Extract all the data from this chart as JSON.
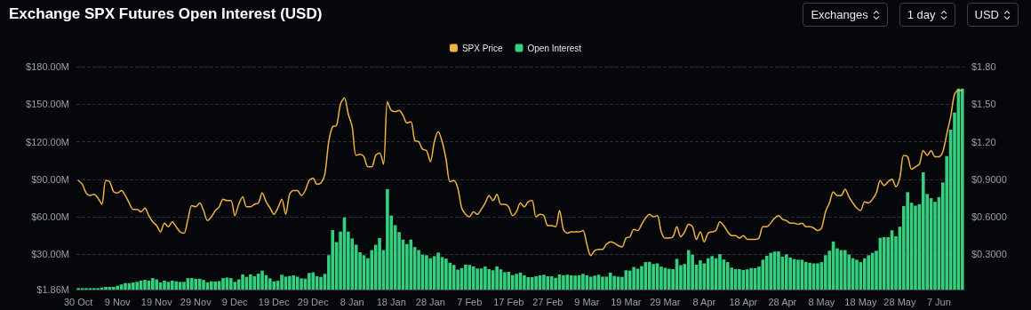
{
  "chart_data": {
    "type": "bar",
    "title": "Exchange SPX Futures Open Interest (USD)",
    "annotations": [
      "Exchanges",
      "1 day",
      "USD"
    ],
    "categories": [
      "30 Oct",
      null,
      null,
      null,
      null,
      null,
      null,
      null,
      null,
      null,
      "9 Nov",
      null,
      null,
      null,
      null,
      null,
      null,
      null,
      null,
      null,
      "19 Nov",
      null,
      null,
      null,
      null,
      null,
      null,
      null,
      null,
      null,
      "29 Nov",
      null,
      null,
      null,
      null,
      null,
      null,
      null,
      null,
      null,
      "9 Dec",
      null,
      null,
      null,
      null,
      null,
      null,
      null,
      null,
      null,
      "19 Dec",
      null,
      null,
      null,
      null,
      null,
      null,
      null,
      null,
      null,
      "29 Dec",
      null,
      null,
      null,
      null,
      null,
      null,
      null,
      null,
      null,
      "8 Jan",
      null,
      null,
      null,
      null,
      null,
      null,
      null,
      null,
      null,
      "18 Jan",
      null,
      null,
      null,
      null,
      null,
      null,
      null,
      null,
      null,
      "28 Jan",
      null,
      null,
      null,
      null,
      null,
      null,
      null,
      null,
      null,
      "7 Feb",
      null,
      null,
      null,
      null,
      null,
      null,
      null,
      null,
      null,
      "17 Feb",
      null,
      null,
      null,
      null,
      null,
      null,
      null,
      null,
      null,
      "27 Feb",
      null,
      null,
      null,
      null,
      null,
      null,
      null,
      null,
      null,
      "9 Mar",
      null,
      null,
      null,
      null,
      null,
      null,
      null,
      null,
      null,
      "19 Mar",
      null,
      null,
      null,
      null,
      null,
      null,
      null,
      null,
      null,
      "29 Mar",
      null,
      null,
      null,
      null,
      null,
      null,
      null,
      null,
      null,
      "8 Apr",
      null,
      null,
      null,
      null,
      null,
      null,
      null,
      null,
      null,
      "18 Apr",
      null,
      null,
      null,
      null,
      null,
      null,
      null,
      null,
      null,
      "28 Apr",
      null,
      null,
      null,
      null,
      null,
      null,
      null,
      null,
      null,
      "8 May",
      null,
      null,
      null,
      null,
      null,
      null,
      null,
      null,
      null,
      "18 May",
      null,
      null,
      null,
      null,
      null,
      null,
      null,
      null,
      null,
      "28 May",
      null,
      null,
      null,
      null,
      null,
      null,
      null,
      null,
      null,
      "7 Jun",
      null,
      null,
      null,
      null,
      null,
      null
    ],
    "series": [
      {
        "name": "SPX Price",
        "type": "line",
        "axis": "y2",
        "color": "#f0b43c",
        "values": [
          0.89,
          0.86,
          0.79,
          0.77,
          0.78,
          0.75,
          0.7,
          0.89,
          0.88,
          0.8,
          0.79,
          0.81,
          0.77,
          0.71,
          0.66,
          0.66,
          0.64,
          0.67,
          0.61,
          0.56,
          0.53,
          0.48,
          0.55,
          0.52,
          0.56,
          0.52,
          0.48,
          0.47,
          0.58,
          0.69,
          0.68,
          0.71,
          0.65,
          0.57,
          0.6,
          0.65,
          0.68,
          0.74,
          0.73,
          0.73,
          0.61,
          0.7,
          0.76,
          0.68,
          0.68,
          0.7,
          0.71,
          0.79,
          0.72,
          0.67,
          0.62,
          0.67,
          0.74,
          0.62,
          0.78,
          0.81,
          0.81,
          0.77,
          0.81,
          0.89,
          0.91,
          0.86,
          0.87,
          0.94,
          1.2,
          1.32,
          1.33,
          1.5,
          1.55,
          1.42,
          1.32,
          1.09,
          1.1,
          1.08,
          1.0,
          1.0,
          1.09,
          1.11,
          1.02,
          1.52,
          1.45,
          1.44,
          1.45,
          1.41,
          1.35,
          1.36,
          1.21,
          1.2,
          1.14,
          1.13,
          1.04,
          1.2,
          1.28,
          1.2,
          1.06,
          0.88,
          0.89,
          0.83,
          0.67,
          0.62,
          0.6,
          0.64,
          0.62,
          0.66,
          0.71,
          0.77,
          0.73,
          0.78,
          0.7,
          0.7,
          0.68,
          0.61,
          0.64,
          0.71,
          0.68,
          0.72,
          0.73,
          0.6,
          0.62,
          0.61,
          0.53,
          0.53,
          0.52,
          0.65,
          0.5,
          0.47,
          0.48,
          0.48,
          0.48,
          0.49,
          0.38,
          0.29,
          0.33,
          0.34,
          0.34,
          0.38,
          0.4,
          0.39,
          0.37,
          0.36,
          0.43,
          0.44,
          0.5,
          0.49,
          0.54,
          0.59,
          0.62,
          0.6,
          0.61,
          0.48,
          0.43,
          0.43,
          0.44,
          0.52,
          0.44,
          0.48,
          0.54,
          0.52,
          0.42,
          0.48,
          0.4,
          0.47,
          0.48,
          0.49,
          0.56,
          0.53,
          0.48,
          0.45,
          0.45,
          0.43,
          0.45,
          0.42,
          0.42,
          0.42,
          0.43,
          0.52,
          0.52,
          0.55,
          0.59,
          0.61,
          0.58,
          0.57,
          0.55,
          0.55,
          0.54,
          0.55,
          0.52,
          0.52,
          0.51,
          0.49,
          0.51,
          0.64,
          0.71,
          0.8,
          0.77,
          0.77,
          0.82,
          0.76,
          0.71,
          0.67,
          0.65,
          0.72,
          0.71,
          0.74,
          0.79,
          0.89,
          0.85,
          0.88,
          0.9,
          0.84,
          0.91,
          1.09,
          1.08,
          0.98,
          1.0,
          1.02,
          1.13,
          1.09,
          1.13,
          1.08,
          1.08,
          1.12,
          1.26,
          1.4,
          1.58,
          1.61,
          1.61
        ]
      },
      {
        "name": "Open Interest",
        "type": "bar",
        "color": "#35d07f",
        "values": [
          3,
          3,
          3,
          3,
          3,
          3,
          3.5,
          4,
          4,
          4,
          5,
          6,
          7,
          7,
          7.5,
          8,
          9,
          9.6,
          9,
          11,
          10,
          7.5,
          9,
          8,
          9,
          8.5,
          8,
          8,
          11,
          11,
          10.5,
          10.5,
          9.6,
          7.7,
          8.4,
          8.4,
          8.6,
          11,
          11.5,
          11,
          8,
          10,
          14,
          12,
          14,
          12.5,
          14.6,
          17,
          13.4,
          10.8,
          8.4,
          8.9,
          13.7,
          12.2,
          12.7,
          13.2,
          12.2,
          10.8,
          10.6,
          15.1,
          15.6,
          12.5,
          12,
          14.4,
          29.3,
          49.4,
          39.8,
          48.2,
          59.5,
          48.2,
          42.7,
          37.7,
          31.7,
          29.3,
          26.9,
          33.4,
          37.7,
          43,
          33.4,
          82.1,
          61,
          53.3,
          47.8,
          41.8,
          38.2,
          41.8,
          35.8,
          33.4,
          29.8,
          29.3,
          26.9,
          28.6,
          31.4,
          27.8,
          26.6,
          23.3,
          21.6,
          17.8,
          19,
          21.8,
          21.6,
          20.4,
          18.7,
          18.7,
          20.2,
          18.2,
          17.3,
          20.4,
          18,
          15.8,
          16.1,
          13.4,
          14.4,
          15.4,
          13.2,
          11.8,
          11.8,
          12.5,
          13.2,
          13.7,
          12.5,
          12.5,
          11.3,
          13.9,
          13.2,
          13.7,
          13.2,
          13,
          13.2,
          14.4,
          13.2,
          12.2,
          13,
          13.7,
          12.2,
          12.2,
          15.4,
          12.7,
          12.2,
          12,
          17.3,
          17,
          19.9,
          18.5,
          20.6,
          23.8,
          24,
          22.3,
          22.8,
          20.2,
          19.2,
          18.5,
          18.2,
          26.4,
          21.4,
          22.3,
          33.4,
          29.8,
          21.8,
          25.2,
          22.8,
          26.9,
          28.6,
          26.9,
          30.2,
          25.9,
          23.8,
          19.4,
          18.2,
          18.2,
          17.5,
          18,
          19,
          19,
          20.2,
          25.7,
          28.8,
          31.2,
          32.2,
          32.4,
          28.1,
          30,
          27.4,
          26.2,
          25.7,
          25.7,
          24,
          23.3,
          22.8,
          22.8,
          23.8,
          29.3,
          32.9,
          40.3,
          34.8,
          33.4,
          33.4,
          29.8,
          26.9,
          25.7,
          23.8,
          26.9,
          29.3,
          31.2,
          32.9,
          43.2,
          43.7,
          43.7,
          49.2,
          44.4,
          52.1,
          68.6,
          79.7,
          71.3,
          68.9,
          70.1,
          95.5,
          78.2,
          74.9,
          72,
          75.8,
          87.4,
          108.5,
          129.6,
          143.3,
          162.5,
          162.5
        ]
      }
    ],
    "ylim": [
      1.86,
      180
    ],
    "yticks": [
      {
        "value": 1.86,
        "label": "$1.86M"
      },
      {
        "value": 30,
        "label": "$30.00M"
      },
      {
        "value": 60,
        "label": "$60.00M"
      },
      {
        "value": 90,
        "label": "$90.00M"
      },
      {
        "value": 120,
        "label": "$120.00M"
      },
      {
        "value": 150,
        "label": "$150.00M"
      },
      {
        "value": 180,
        "label": "$180.00M"
      }
    ],
    "y2lim": [
      0.0186,
      1.8
    ],
    "y2ticks": [
      {
        "value": 0.3,
        "label": "$0.3000"
      },
      {
        "value": 0.6,
        "label": "$0.6000"
      },
      {
        "value": 0.9,
        "label": "$0.9000"
      },
      {
        "value": 1.2,
        "label": "$1.20"
      },
      {
        "value": 1.5,
        "label": "$1.50"
      },
      {
        "value": 1.8,
        "label": "$1.80"
      }
    ],
    "grid": "y",
    "legend": "top",
    "marker": "none"
  }
}
